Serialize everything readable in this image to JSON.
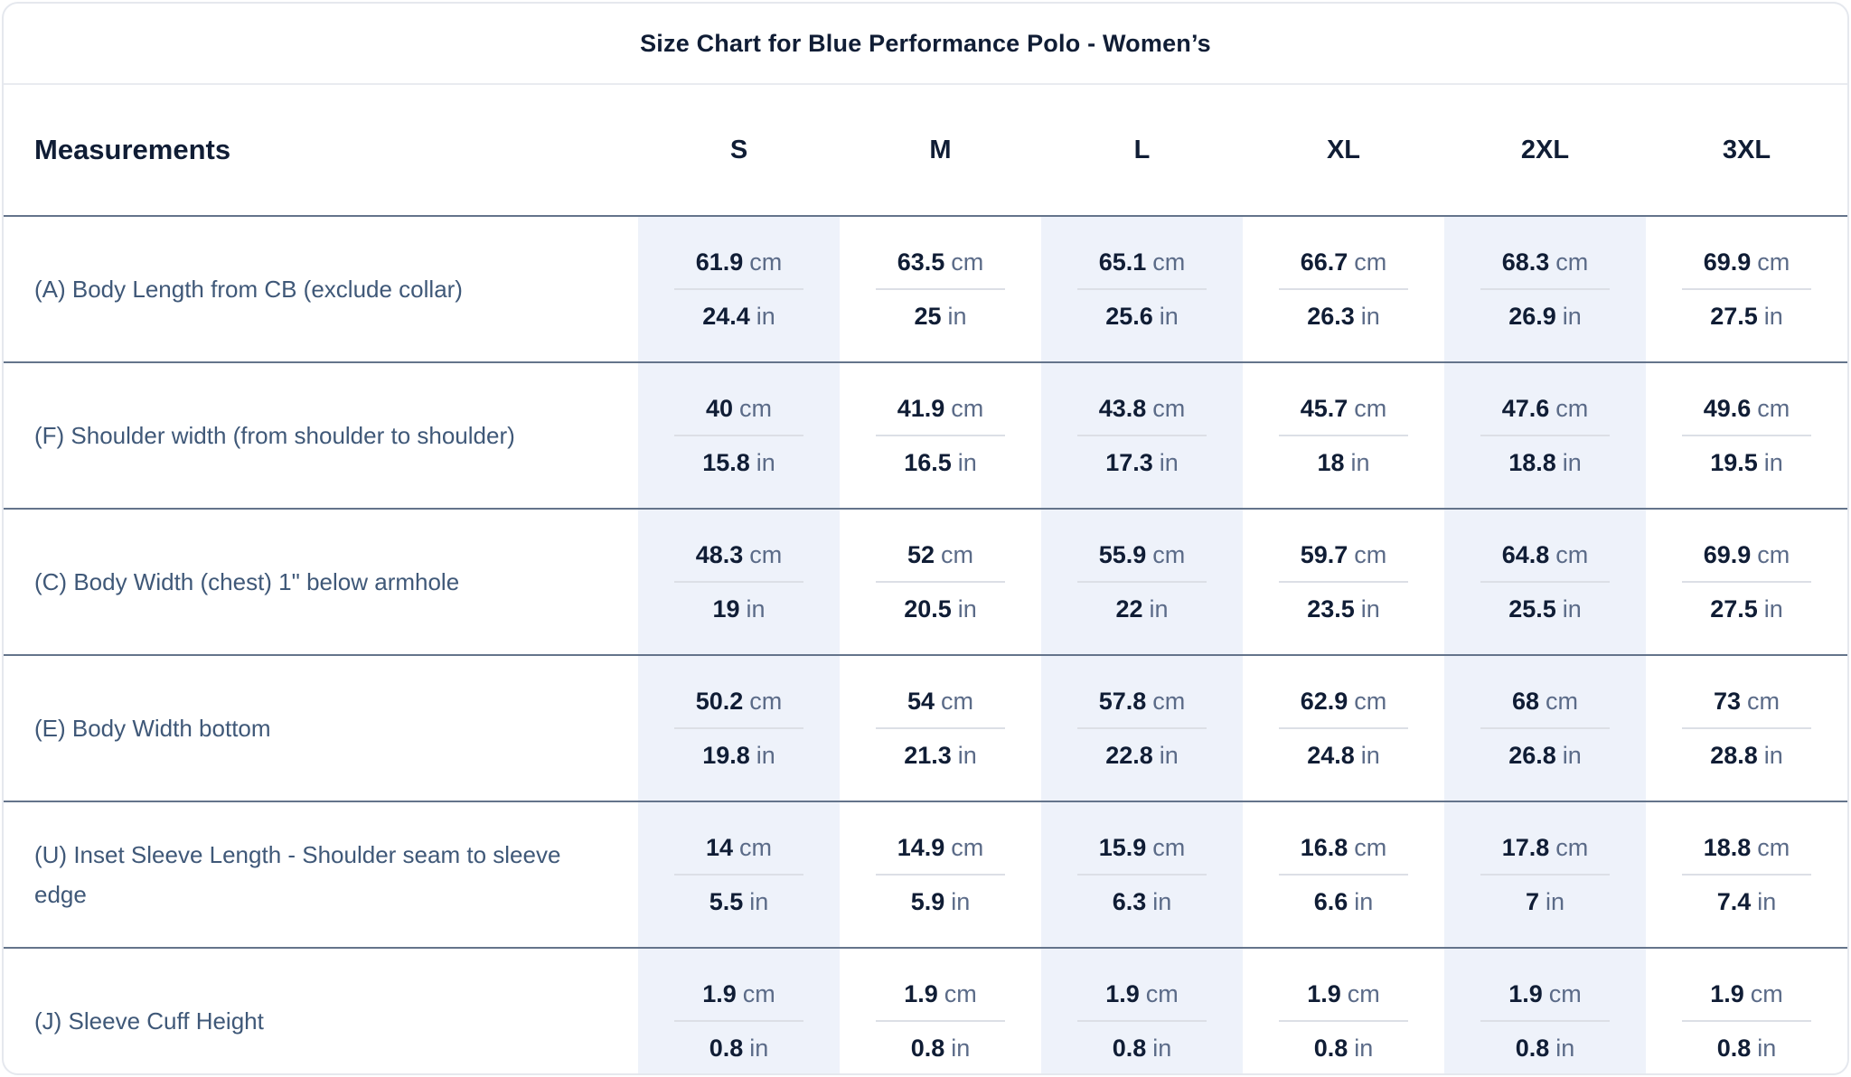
{
  "title": "Size Chart for Blue Performance Polo - Women’s",
  "header": {
    "measurements_label": "Measurements",
    "sizes": [
      "S",
      "M",
      "L",
      "XL",
      "2XL",
      "3XL"
    ]
  },
  "units": {
    "metric": "cm",
    "imperial": "in"
  },
  "rows": [
    {
      "label": "(A) Body Length from CB (exclude collar)",
      "cm": [
        "61.9",
        "63.5",
        "65.1",
        "66.7",
        "68.3",
        "69.9"
      ],
      "in": [
        "24.4",
        "25",
        "25.6",
        "26.3",
        "26.9",
        "27.5"
      ]
    },
    {
      "label": "(F) Shoulder width (from shoulder to shoulder)",
      "cm": [
        "40",
        "41.9",
        "43.8",
        "45.7",
        "47.6",
        "49.6"
      ],
      "in": [
        "15.8",
        "16.5",
        "17.3",
        "18",
        "18.8",
        "19.5"
      ]
    },
    {
      "label": "(C) Body Width (chest) 1\" below armhole",
      "cm": [
        "48.3",
        "52",
        "55.9",
        "59.7",
        "64.8",
        "69.9"
      ],
      "in": [
        "19",
        "20.5",
        "22",
        "23.5",
        "25.5",
        "27.5"
      ]
    },
    {
      "label": "(E) Body Width bottom",
      "cm": [
        "50.2",
        "54",
        "57.8",
        "62.9",
        "68",
        "73"
      ],
      "in": [
        "19.8",
        "21.3",
        "22.8",
        "24.8",
        "26.8",
        "28.8"
      ]
    },
    {
      "label": "(U) Inset Sleeve Length - Shoulder seam to sleeve edge",
      "cm": [
        "14",
        "14.9",
        "15.9",
        "16.8",
        "17.8",
        "18.8"
      ],
      "in": [
        "5.5",
        "5.9",
        "6.3",
        "6.6",
        "7",
        "7.4"
      ]
    },
    {
      "label": "(J) Sleeve Cuff Height",
      "cm": [
        "1.9",
        "1.9",
        "1.9",
        "1.9",
        "1.9",
        "1.9"
      ],
      "in": [
        "0.8",
        "0.8",
        "0.8",
        "0.8",
        "0.8",
        "0.8"
      ]
    }
  ],
  "striped_columns": [
    0,
    2,
    4
  ],
  "colors": {
    "stripe_bg": "#eef2fa",
    "number": "#101d35",
    "unit": "#5b6b88",
    "label": "#3f5878",
    "row_divider": "#64748b",
    "cell_divider": "#dcdfe6",
    "card_border": "#e5e8ee"
  }
}
